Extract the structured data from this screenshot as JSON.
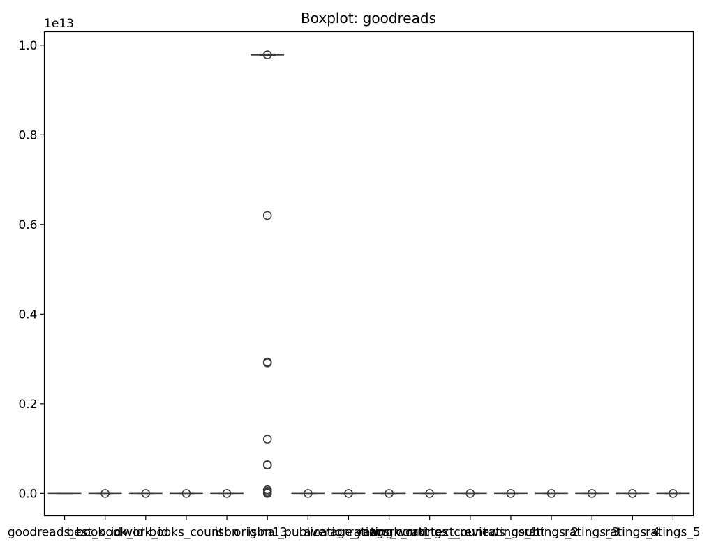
{
  "chart_data": {
    "type": "box",
    "title": "Boxplot: goodreads",
    "xlabel": "",
    "ylabel": "",
    "y_offset_label": "1e13",
    "ylim": [
      -0.05,
      1.03
    ],
    "y_ticks": [
      0.0,
      0.2,
      0.4,
      0.6,
      0.8,
      1.0
    ],
    "y_tick_labels": [
      "0.0",
      "0.2",
      "0.4",
      "0.6",
      "0.8",
      "1.0"
    ],
    "grid": false,
    "legend": "none",
    "box_color": "#3a3a3a",
    "categories": [
      "goodreads_book_id",
      "best_book_id",
      "work_id",
      "books_count",
      "isbn",
      "isbn13",
      "original_publication_year",
      "average_rating",
      "ratings_count",
      "work_ratings_count",
      "work_text_reviews_count",
      "ratings_1",
      "ratings_2",
      "ratings_3",
      "ratings_4",
      "ratings_5"
    ],
    "boxes": [
      {
        "q1": 0.0,
        "median": 0.0,
        "q3": 0.0,
        "whisker_low": 0.0,
        "whisker_high": 0.0,
        "outliers": []
      },
      {
        "q1": 0.0,
        "median": 0.0,
        "q3": 0.0,
        "whisker_low": 0.0,
        "whisker_high": 0.0,
        "outliers": [
          0.0
        ]
      },
      {
        "q1": 0.0,
        "median": 0.0,
        "q3": 0.0,
        "whisker_low": 0.0,
        "whisker_high": 0.0,
        "outliers": [
          0.0
        ]
      },
      {
        "q1": 0.0,
        "median": 0.0,
        "q3": 0.0,
        "whisker_low": 0.0,
        "whisker_high": 0.0,
        "outliers": [
          0.0
        ]
      },
      {
        "q1": 0.0,
        "median": 0.0,
        "q3": 0.0,
        "whisker_low": 0.0,
        "whisker_high": 0.0,
        "outliers": [
          0.0
        ]
      },
      {
        "q1": 0.978,
        "median": 0.978,
        "q3": 0.979,
        "whisker_low": 0.977,
        "whisker_high": 0.98,
        "outliers": [
          0.9785,
          0.62,
          0.293,
          0.291,
          0.121,
          0.064,
          0.063,
          0.008,
          0.005,
          0.002,
          0.0
        ]
      },
      {
        "q1": 0.0,
        "median": 0.0,
        "q3": 0.0,
        "whisker_low": 0.0,
        "whisker_high": 0.0,
        "outliers": [
          0.0
        ]
      },
      {
        "q1": 0.0,
        "median": 0.0,
        "q3": 0.0,
        "whisker_low": 0.0,
        "whisker_high": 0.0,
        "outliers": [
          0.0
        ]
      },
      {
        "q1": 0.0,
        "median": 0.0,
        "q3": 0.0,
        "whisker_low": 0.0,
        "whisker_high": 0.0,
        "outliers": [
          0.0
        ]
      },
      {
        "q1": 0.0,
        "median": 0.0,
        "q3": 0.0,
        "whisker_low": 0.0,
        "whisker_high": 0.0,
        "outliers": [
          0.0
        ]
      },
      {
        "q1": 0.0,
        "median": 0.0,
        "q3": 0.0,
        "whisker_low": 0.0,
        "whisker_high": 0.0,
        "outliers": [
          0.0
        ]
      },
      {
        "q1": 0.0,
        "median": 0.0,
        "q3": 0.0,
        "whisker_low": 0.0,
        "whisker_high": 0.0,
        "outliers": [
          0.0
        ]
      },
      {
        "q1": 0.0,
        "median": 0.0,
        "q3": 0.0,
        "whisker_low": 0.0,
        "whisker_high": 0.0,
        "outliers": [
          0.0
        ]
      },
      {
        "q1": 0.0,
        "median": 0.0,
        "q3": 0.0,
        "whisker_low": 0.0,
        "whisker_high": 0.0,
        "outliers": [
          0.0
        ]
      },
      {
        "q1": 0.0,
        "median": 0.0,
        "q3": 0.0,
        "whisker_low": 0.0,
        "whisker_high": 0.0,
        "outliers": [
          0.0
        ]
      },
      {
        "q1": 0.0,
        "median": 0.0,
        "q3": 0.0,
        "whisker_low": 0.0,
        "whisker_high": 0.0,
        "outliers": [
          0.0
        ]
      }
    ]
  }
}
